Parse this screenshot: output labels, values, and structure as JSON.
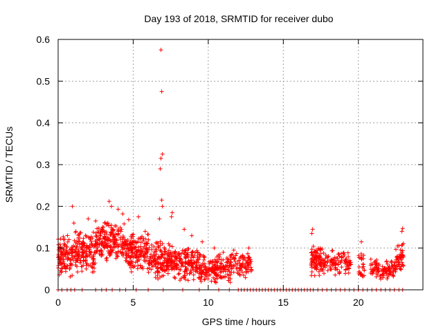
{
  "chart_data": {
    "type": "scatter",
    "title": "Day 193 of 2018, SRMTID for receiver dubo",
    "xlabel": "GPS time / hours",
    "ylabel": "SRMTID / TECUs",
    "xlim": [
      0,
      24.3
    ],
    "ylim": [
      0,
      0.6
    ],
    "xticks": [
      0,
      5,
      10,
      15,
      20
    ],
    "yticks": [
      0,
      0.1,
      0.2,
      0.3,
      0.4,
      0.5,
      0.6
    ],
    "xtick_labels": [
      "0",
      "5",
      "10",
      "15",
      "20"
    ],
    "ytick_labels": [
      "0",
      "0.1",
      "0.2",
      "0.3",
      "0.4",
      "0.5",
      "0.6"
    ],
    "grid": true,
    "marker": "+",
    "color": "#ff0000",
    "series": [
      {
        "name": "SRMTID",
        "points": [
          [
            6.85,
            0.575
          ],
          [
            6.9,
            0.475
          ],
          [
            6.95,
            0.325
          ],
          [
            6.85,
            0.315
          ],
          [
            6.8,
            0.29
          ],
          [
            6.9,
            0.215
          ],
          [
            6.95,
            0.2
          ],
          [
            0.95,
            0.2
          ],
          [
            3.4,
            0.212
          ],
          [
            3.55,
            0.2
          ],
          [
            4.0,
            0.193
          ],
          [
            4.3,
            0.182
          ],
          [
            7.6,
            0.185
          ],
          [
            7.55,
            0.175
          ],
          [
            6.75,
            0.17
          ],
          [
            5.35,
            0.175
          ],
          [
            16.95,
            0.145
          ],
          [
            16.9,
            0.135
          ],
          [
            22.95,
            0.147
          ],
          [
            22.9,
            0.14
          ],
          [
            20.2,
            0.115
          ],
          [
            1.05,
            0.16
          ],
          [
            2.0,
            0.17
          ],
          [
            2.5,
            0.165
          ],
          [
            3.1,
            0.16
          ],
          [
            4.7,
            0.168
          ],
          [
            5.8,
            0.14
          ],
          [
            8.4,
            0.145
          ],
          [
            8.9,
            0.13
          ],
          [
            9.6,
            0.115
          ],
          [
            10.4,
            0.1
          ],
          [
            11.0,
            0.09
          ],
          [
            11.7,
            0.095
          ],
          [
            12.7,
            0.1
          ],
          [
            0.0,
            0.0
          ],
          [
            0.25,
            0.0
          ],
          [
            0.6,
            0.0
          ],
          [
            0.85,
            0.0
          ],
          [
            1.1,
            0.0
          ],
          [
            1.6,
            0.0
          ],
          [
            2.5,
            0.0
          ],
          [
            2.9,
            0.0
          ],
          [
            3.2,
            0.0
          ],
          [
            3.6,
            0.0
          ],
          [
            4.1,
            0.0
          ],
          [
            4.5,
            0.0
          ],
          [
            5.2,
            0.0
          ],
          [
            6.0,
            0.0
          ],
          [
            7.0,
            0.0
          ],
          [
            8.3,
            0.0
          ],
          [
            9.4,
            0.0
          ],
          [
            10.7,
            0.0
          ],
          [
            11.4,
            0.0
          ],
          [
            12.0,
            0.0
          ],
          [
            12.2,
            0.0
          ],
          [
            12.4,
            0.0
          ],
          [
            12.6,
            0.0
          ],
          [
            12.8,
            0.0
          ],
          [
            13.0,
            0.0
          ],
          [
            13.2,
            0.0
          ],
          [
            13.4,
            0.0
          ],
          [
            13.6,
            0.0
          ],
          [
            13.8,
            0.0
          ],
          [
            14.0,
            0.0
          ],
          [
            14.2,
            0.0
          ],
          [
            14.4,
            0.0
          ],
          [
            14.6,
            0.0
          ],
          [
            14.8,
            0.0
          ],
          [
            15.0,
            0.0
          ],
          [
            15.2,
            0.0
          ],
          [
            15.4,
            0.0
          ],
          [
            15.6,
            0.0
          ],
          [
            15.8,
            0.0
          ],
          [
            16.0,
            0.0
          ],
          [
            16.2,
            0.0
          ],
          [
            16.4,
            0.0
          ],
          [
            16.6,
            0.0
          ],
          [
            16.8,
            0.0
          ],
          [
            17.0,
            0.0
          ],
          [
            17.3,
            0.0
          ],
          [
            17.6,
            0.0
          ],
          [
            17.9,
            0.0
          ],
          [
            18.2,
            0.0
          ],
          [
            18.5,
            0.0
          ],
          [
            18.8,
            0.0
          ],
          [
            19.1,
            0.0
          ],
          [
            19.4,
            0.0
          ],
          [
            19.7,
            0.0
          ],
          [
            20.0,
            0.0
          ],
          [
            20.3,
            0.0
          ],
          [
            20.6,
            0.0
          ],
          [
            20.9,
            0.0
          ],
          [
            21.2,
            0.0
          ],
          [
            21.5,
            0.0
          ],
          [
            21.8,
            0.0
          ],
          [
            22.1,
            0.0
          ],
          [
            22.4,
            0.0
          ],
          [
            22.7,
            0.0
          ],
          [
            22.95,
            0.0
          ]
        ],
        "clusters": [
          {
            "x_range": [
              0.0,
              1.0
            ],
            "y_center": 0.08,
            "y_spread": 0.04,
            "count": 110
          },
          {
            "x_range": [
              1.0,
              2.5
            ],
            "y_center": 0.09,
            "y_spread": 0.045,
            "count": 150
          },
          {
            "x_range": [
              2.5,
              4.5
            ],
            "y_center": 0.115,
            "y_spread": 0.04,
            "count": 200
          },
          {
            "x_range": [
              4.5,
              6.0
            ],
            "y_center": 0.09,
            "y_spread": 0.04,
            "count": 160
          },
          {
            "x_range": [
              6.0,
              7.5
            ],
            "y_center": 0.075,
            "y_spread": 0.04,
            "count": 150
          },
          {
            "x_range": [
              7.5,
              9.5
            ],
            "y_center": 0.065,
            "y_spread": 0.035,
            "count": 180
          },
          {
            "x_range": [
              9.5,
              11.5
            ],
            "y_center": 0.05,
            "y_spread": 0.028,
            "count": 170
          },
          {
            "x_range": [
              11.5,
              12.9
            ],
            "y_center": 0.06,
            "y_spread": 0.025,
            "count": 90
          },
          {
            "x_range": [
              16.85,
              17.6
            ],
            "y_center": 0.07,
            "y_spread": 0.03,
            "count": 90
          },
          {
            "x_range": [
              17.6,
              19.5
            ],
            "y_center": 0.065,
            "y_spread": 0.025,
            "count": 110
          },
          {
            "x_range": [
              20.0,
              20.4
            ],
            "y_center": 0.06,
            "y_spread": 0.03,
            "count": 25
          },
          {
            "x_range": [
              20.8,
              22.5
            ],
            "y_center": 0.05,
            "y_spread": 0.02,
            "count": 110
          },
          {
            "x_range": [
              22.5,
              23.0
            ],
            "y_center": 0.08,
            "y_spread": 0.03,
            "count": 45
          }
        ]
      }
    ]
  }
}
